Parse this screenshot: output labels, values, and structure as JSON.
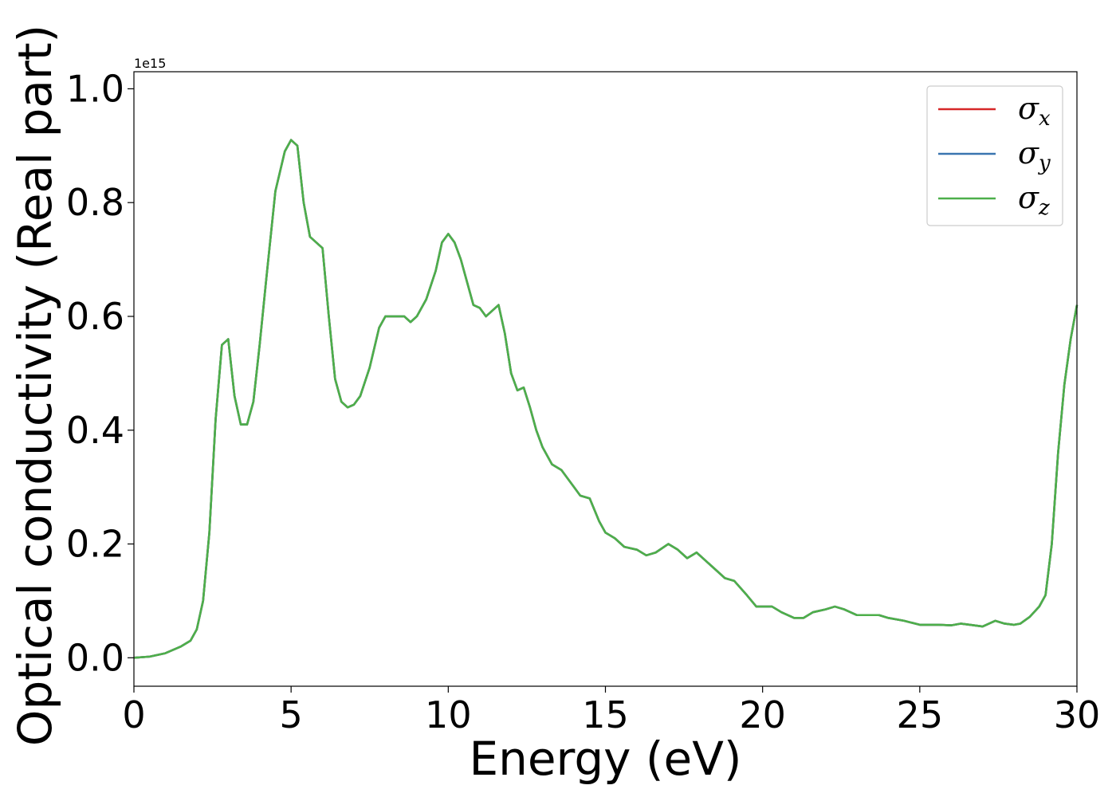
{
  "chart_data": {
    "type": "line",
    "title": "",
    "xlabel": "Energy (eV)",
    "ylabel": "Optical conductivity (Real part)",
    "y_offset_label": "1e15",
    "xlim": [
      0,
      30
    ],
    "ylim": [
      -0.05,
      1.03
    ],
    "xticks": [
      0,
      5,
      10,
      15,
      20,
      25,
      30
    ],
    "xtick_labels": [
      "0",
      "5",
      "10",
      "15",
      "20",
      "25",
      "30"
    ],
    "yticks": [
      0.0,
      0.2,
      0.4,
      0.6,
      0.8,
      1.0
    ],
    "ytick_labels": [
      "0.0",
      "0.2",
      "0.4",
      "0.6",
      "0.8",
      "1.0"
    ],
    "grid": false,
    "legend_position": "top-right",
    "x": [
      0,
      0.5,
      1.0,
      1.5,
      1.8,
      2.0,
      2.2,
      2.4,
      2.6,
      2.8,
      3.0,
      3.2,
      3.4,
      3.6,
      3.8,
      4.0,
      4.2,
      4.5,
      4.8,
      5.0,
      5.2,
      5.4,
      5.6,
      5.8,
      6.0,
      6.2,
      6.4,
      6.6,
      6.8,
      7.0,
      7.2,
      7.5,
      7.8,
      8.0,
      8.2,
      8.4,
      8.6,
      8.8,
      9.0,
      9.3,
      9.6,
      9.8,
      10.0,
      10.2,
      10.4,
      10.6,
      10.8,
      11.0,
      11.2,
      11.4,
      11.6,
      11.8,
      12.0,
      12.2,
      12.4,
      12.6,
      12.8,
      13.0,
      13.3,
      13.6,
      14.0,
      14.2,
      14.5,
      14.8,
      15.0,
      15.3,
      15.6,
      16.0,
      16.3,
      16.6,
      17.0,
      17.3,
      17.6,
      17.9,
      18.2,
      18.5,
      18.8,
      19.1,
      19.5,
      19.8,
      20.0,
      20.3,
      20.6,
      21.0,
      21.3,
      21.6,
      22.0,
      22.3,
      22.6,
      23.0,
      23.3,
      23.7,
      24.0,
      24.5,
      25.0,
      25.3,
      25.6,
      26.0,
      26.3,
      26.6,
      27.0,
      27.4,
      27.7,
      28.0,
      28.2,
      28.5,
      28.8,
      29.0,
      29.2,
      29.4,
      29.6,
      29.8,
      30.0
    ],
    "series": [
      {
        "name": "σx",
        "label_base": "σ",
        "label_sub": "x",
        "color": "#d62728",
        "y": [
          0.0,
          0.002,
          0.008,
          0.02,
          0.03,
          0.05,
          0.1,
          0.22,
          0.42,
          0.55,
          0.56,
          0.46,
          0.41,
          0.41,
          0.45,
          0.55,
          0.66,
          0.82,
          0.89,
          0.91,
          0.9,
          0.8,
          0.74,
          0.73,
          0.72,
          0.6,
          0.49,
          0.45,
          0.44,
          0.445,
          0.46,
          0.51,
          0.58,
          0.6,
          0.6,
          0.6,
          0.6,
          0.59,
          0.6,
          0.63,
          0.68,
          0.73,
          0.745,
          0.73,
          0.7,
          0.66,
          0.62,
          0.615,
          0.6,
          0.61,
          0.62,
          0.57,
          0.5,
          0.47,
          0.475,
          0.44,
          0.4,
          0.37,
          0.34,
          0.33,
          0.3,
          0.285,
          0.28,
          0.24,
          0.22,
          0.21,
          0.195,
          0.19,
          0.18,
          0.185,
          0.2,
          0.19,
          0.175,
          0.185,
          0.17,
          0.155,
          0.14,
          0.135,
          0.11,
          0.09,
          0.09,
          0.09,
          0.08,
          0.07,
          0.07,
          0.08,
          0.085,
          0.09,
          0.085,
          0.075,
          0.075,
          0.075,
          0.07,
          0.065,
          0.058,
          0.058,
          0.058,
          0.057,
          0.06,
          0.058,
          0.055,
          0.065,
          0.06,
          0.058,
          0.06,
          0.072,
          0.09,
          0.11,
          0.2,
          0.36,
          0.48,
          0.56,
          0.62
        ]
      },
      {
        "name": "σy",
        "label_base": "σ",
        "label_sub": "y",
        "color": "#3a75b0",
        "y": [
          0.0,
          0.002,
          0.008,
          0.02,
          0.03,
          0.05,
          0.1,
          0.22,
          0.42,
          0.55,
          0.56,
          0.46,
          0.41,
          0.41,
          0.45,
          0.55,
          0.66,
          0.82,
          0.89,
          0.91,
          0.9,
          0.8,
          0.74,
          0.73,
          0.72,
          0.6,
          0.49,
          0.45,
          0.44,
          0.445,
          0.46,
          0.51,
          0.58,
          0.6,
          0.6,
          0.6,
          0.6,
          0.59,
          0.6,
          0.63,
          0.68,
          0.73,
          0.745,
          0.73,
          0.7,
          0.66,
          0.62,
          0.615,
          0.6,
          0.61,
          0.62,
          0.57,
          0.5,
          0.47,
          0.475,
          0.44,
          0.4,
          0.37,
          0.34,
          0.33,
          0.3,
          0.285,
          0.28,
          0.24,
          0.22,
          0.21,
          0.195,
          0.19,
          0.18,
          0.185,
          0.2,
          0.19,
          0.175,
          0.185,
          0.17,
          0.155,
          0.14,
          0.135,
          0.11,
          0.09,
          0.09,
          0.09,
          0.08,
          0.07,
          0.07,
          0.08,
          0.085,
          0.09,
          0.085,
          0.075,
          0.075,
          0.075,
          0.07,
          0.065,
          0.058,
          0.058,
          0.058,
          0.057,
          0.06,
          0.058,
          0.055,
          0.065,
          0.06,
          0.058,
          0.06,
          0.072,
          0.09,
          0.11,
          0.2,
          0.36,
          0.48,
          0.56,
          0.62
        ]
      },
      {
        "name": "σz",
        "label_base": "σ",
        "label_sub": "z",
        "color": "#4daf4a",
        "y": [
          0.0,
          0.002,
          0.008,
          0.02,
          0.03,
          0.05,
          0.1,
          0.22,
          0.42,
          0.55,
          0.56,
          0.46,
          0.41,
          0.41,
          0.45,
          0.55,
          0.66,
          0.82,
          0.89,
          0.91,
          0.9,
          0.8,
          0.74,
          0.73,
          0.72,
          0.6,
          0.49,
          0.45,
          0.44,
          0.445,
          0.46,
          0.51,
          0.58,
          0.6,
          0.6,
          0.6,
          0.6,
          0.59,
          0.6,
          0.63,
          0.68,
          0.73,
          0.745,
          0.73,
          0.7,
          0.66,
          0.62,
          0.615,
          0.6,
          0.61,
          0.62,
          0.57,
          0.5,
          0.47,
          0.475,
          0.44,
          0.4,
          0.37,
          0.34,
          0.33,
          0.3,
          0.285,
          0.28,
          0.24,
          0.22,
          0.21,
          0.195,
          0.19,
          0.18,
          0.185,
          0.2,
          0.19,
          0.175,
          0.185,
          0.17,
          0.155,
          0.14,
          0.135,
          0.11,
          0.09,
          0.09,
          0.09,
          0.08,
          0.07,
          0.07,
          0.08,
          0.085,
          0.09,
          0.085,
          0.075,
          0.075,
          0.075,
          0.07,
          0.065,
          0.058,
          0.058,
          0.058,
          0.057,
          0.06,
          0.058,
          0.055,
          0.065,
          0.06,
          0.058,
          0.06,
          0.072,
          0.09,
          0.11,
          0.2,
          0.36,
          0.48,
          0.56,
          0.62
        ]
      }
    ]
  }
}
